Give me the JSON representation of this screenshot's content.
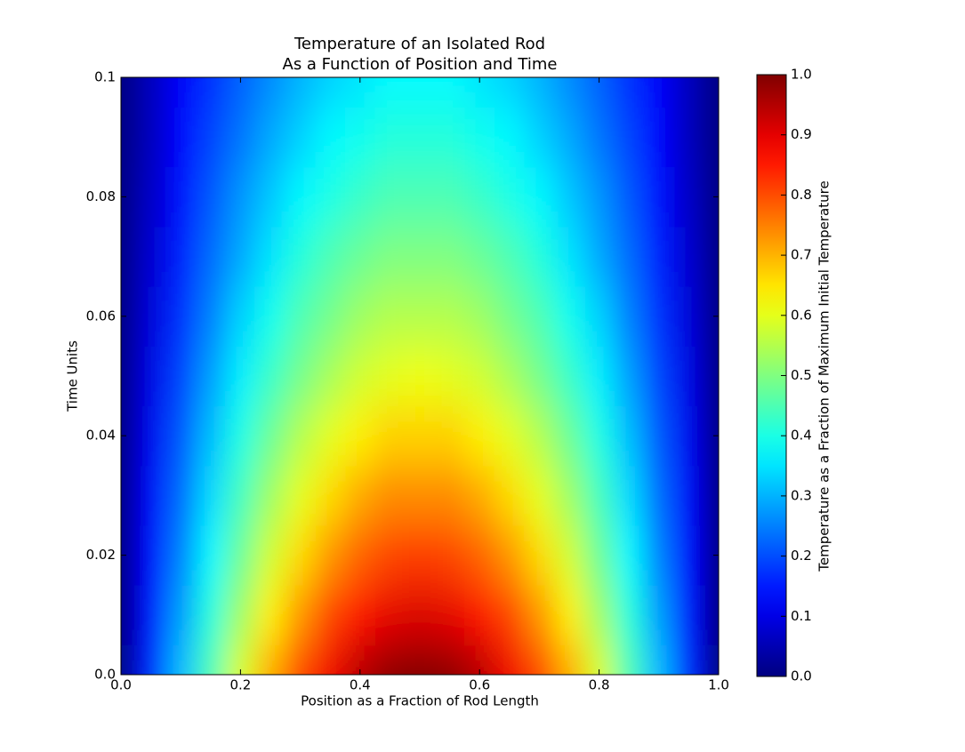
{
  "chart_data": {
    "type": "heatmap",
    "title": [
      "Temperature of an Isolated Rod",
      "As a Function of Position and Time"
    ],
    "x_label": "Position as a Fraction of Rod Length",
    "y_label": "Time Units",
    "colorbar_label": "Temperature as a Fraction of Maximum Initial Temperature",
    "colormap": "jet",
    "x": [
      0,
      0.05,
      0.1,
      0.15,
      0.2,
      0.25,
      0.3,
      0.35,
      0.4,
      0.45,
      0.5,
      0.55,
      0.6,
      0.65,
      0.7,
      0.75,
      0.8,
      0.85,
      0.9,
      0.95,
      1
    ],
    "y": [
      0,
      0.01,
      0.02,
      0.03,
      0.04,
      0.05,
      0.06,
      0.07,
      0.08,
      0.09,
      0.1
    ],
    "values": [
      [
        0,
        0.16,
        0.31,
        0.45,
        0.59,
        0.71,
        0.81,
        0.89,
        0.95,
        0.99,
        1.0,
        0.99,
        0.95,
        0.89,
        0.81,
        0.71,
        0.59,
        0.45,
        0.31,
        0.16,
        0
      ],
      [
        0,
        0.14,
        0.28,
        0.41,
        0.53,
        0.64,
        0.73,
        0.81,
        0.86,
        0.9,
        0.91,
        0.9,
        0.86,
        0.81,
        0.73,
        0.64,
        0.53,
        0.41,
        0.28,
        0.14,
        0
      ],
      [
        0,
        0.13,
        0.25,
        0.37,
        0.48,
        0.58,
        0.66,
        0.73,
        0.78,
        0.81,
        0.82,
        0.81,
        0.78,
        0.73,
        0.66,
        0.58,
        0.48,
        0.37,
        0.25,
        0.13,
        0
      ],
      [
        0,
        0.12,
        0.23,
        0.34,
        0.44,
        0.53,
        0.6,
        0.66,
        0.71,
        0.74,
        0.74,
        0.74,
        0.71,
        0.66,
        0.6,
        0.53,
        0.44,
        0.34,
        0.23,
        0.12,
        0
      ],
      [
        0,
        0.11,
        0.21,
        0.31,
        0.4,
        0.48,
        0.55,
        0.6,
        0.64,
        0.67,
        0.67,
        0.67,
        0.64,
        0.6,
        0.55,
        0.48,
        0.4,
        0.31,
        0.21,
        0.11,
        0
      ],
      [
        0,
        0.1,
        0.19,
        0.28,
        0.36,
        0.43,
        0.49,
        0.54,
        0.58,
        0.6,
        0.61,
        0.6,
        0.58,
        0.54,
        0.49,
        0.43,
        0.36,
        0.28,
        0.19,
        0.1,
        0
      ],
      [
        0,
        0.09,
        0.17,
        0.25,
        0.33,
        0.39,
        0.45,
        0.49,
        0.53,
        0.55,
        0.55,
        0.55,
        0.53,
        0.49,
        0.45,
        0.39,
        0.33,
        0.25,
        0.17,
        0.09,
        0
      ],
      [
        0,
        0.08,
        0.15,
        0.23,
        0.29,
        0.35,
        0.41,
        0.45,
        0.48,
        0.5,
        0.5,
        0.5,
        0.48,
        0.45,
        0.41,
        0.35,
        0.29,
        0.23,
        0.15,
        0.08,
        0
      ],
      [
        0,
        0.07,
        0.14,
        0.21,
        0.27,
        0.32,
        0.37,
        0.4,
        0.43,
        0.45,
        0.45,
        0.45,
        0.43,
        0.4,
        0.37,
        0.32,
        0.27,
        0.21,
        0.14,
        0.07,
        0
      ],
      [
        0,
        0.06,
        0.13,
        0.19,
        0.24,
        0.29,
        0.33,
        0.37,
        0.39,
        0.41,
        0.41,
        0.41,
        0.39,
        0.37,
        0.33,
        0.29,
        0.24,
        0.19,
        0.13,
        0.06,
        0
      ],
      [
        0,
        0.06,
        0.12,
        0.17,
        0.22,
        0.26,
        0.3,
        0.33,
        0.35,
        0.37,
        0.37,
        0.37,
        0.35,
        0.33,
        0.3,
        0.26,
        0.22,
        0.17,
        0.12,
        0.06,
        0
      ]
    ],
    "xlim": [
      0,
      1
    ],
    "xticks": [
      {
        "value": 0,
        "label": "0.0"
      },
      0.2,
      0.4,
      0.6,
      0.8,
      {
        "value": 1,
        "label": "1.0"
      }
    ],
    "ylim": [
      0,
      0.1
    ],
    "yticks": [
      {
        "value": 0,
        "label": "0.0"
      },
      0.02,
      0.04,
      0.06,
      0.08,
      0.1
    ],
    "zlim": [
      0,
      1
    ],
    "zticks": [
      {
        "value": 0,
        "label": "0.0"
      },
      0.1,
      0.2,
      0.3,
      0.4,
      0.5,
      0.6,
      0.7,
      0.8,
      0.9,
      {
        "value": 1,
        "label": "1.0"
      }
    ]
  }
}
